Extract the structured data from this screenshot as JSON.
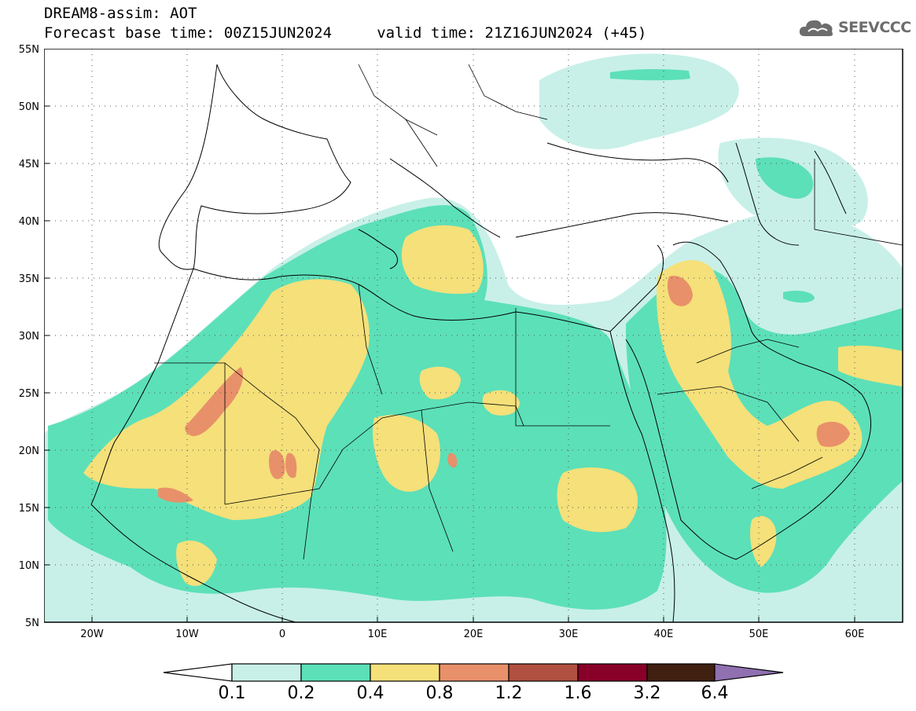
{
  "title": {
    "line1": "DREAM8-assim: AOT",
    "line2": "Forecast base time: 00Z15JUN2024     valid time: 21Z16JUN2024 (+45)"
  },
  "logo": {
    "text": "SEEVCCC",
    "icon": "cloud-icon"
  },
  "map": {
    "lon_range": [
      -25,
      65
    ],
    "lat_range": [
      5,
      55
    ],
    "lat_ticks": [
      "55N",
      "50N",
      "45N",
      "40N",
      "35N",
      "30N",
      "25N",
      "20N",
      "15N",
      "10N",
      "5N"
    ],
    "lon_ticks": [
      "20W",
      "10W",
      "0",
      "10E",
      "20E",
      "30E",
      "40E",
      "50E",
      "60E"
    ],
    "grid": "dotted"
  },
  "colorbar": {
    "colors": [
      "#ffffff",
      "#c8f0e8",
      "#5ce0b8",
      "#f5e07a",
      "#e8906a",
      "#b05040",
      "#880028",
      "#402010",
      "#9070b0"
    ],
    "labels": [
      "0.1",
      "0.2",
      "0.4",
      "0.8",
      "1.2",
      "1.6",
      "3.2",
      "6.4"
    ]
  }
}
